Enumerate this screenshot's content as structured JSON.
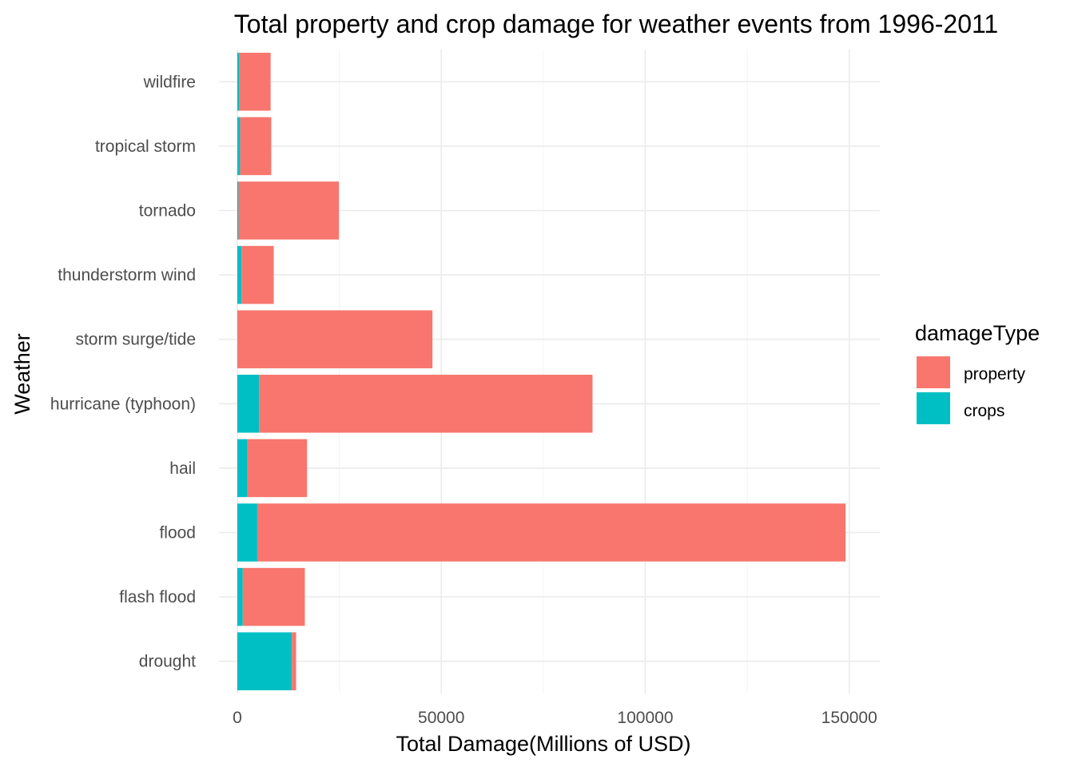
{
  "chart_data": {
    "type": "bar",
    "orientation": "horizontal",
    "stacked": true,
    "title": "Total property and crop damage for weather events from 1996-2011",
    "xlabel": "Total Damage(Millions of USD)",
    "ylabel": "Weather",
    "categories": [
      "drought",
      "flash flood",
      "flood",
      "hail",
      "hurricane (typhoon)",
      "storm surge/tide",
      "thunderstorm wind",
      "tornado",
      "tropical storm",
      "wildfire"
    ],
    "series": [
      {
        "name": "crops",
        "color": "#00BFC4",
        "values": [
          13367,
          1335,
          4974,
          2496,
          5350,
          0,
          1017,
          284,
          677,
          402
        ]
      },
      {
        "name": "property",
        "color": "#F8766D",
        "values": [
          1046,
          15222,
          144130,
          14595,
          81719,
          47835,
          7914,
          24617,
          7642,
          7761
        ]
      }
    ],
    "stack_order": [
      "crops",
      "property"
    ],
    "xlim": [
      -4500,
      157500
    ],
    "xticks": [
      0,
      50000,
      100000,
      150000
    ],
    "xtick_labels": [
      "0",
      "50000",
      "100000",
      "150000"
    ],
    "minor_xticks": [
      25000,
      75000,
      125000
    ],
    "grid": true,
    "legend": {
      "title": "damageType",
      "position": "right",
      "entries": [
        {
          "label": "property",
          "color": "#F8766D"
        },
        {
          "label": "crops",
          "color": "#00BFC4"
        }
      ]
    }
  }
}
